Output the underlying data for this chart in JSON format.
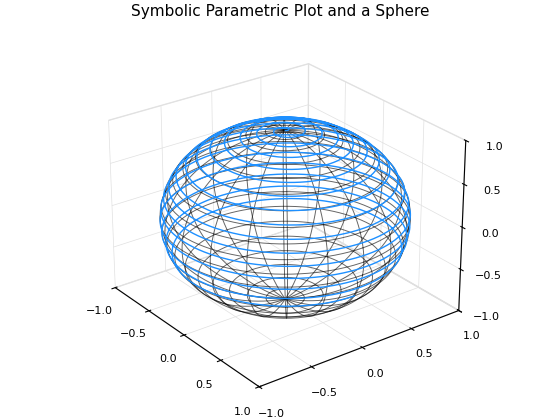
{
  "title": "Symbolic Parametric Plot and a Sphere",
  "title_fontsize": 11,
  "sphere_color": "#000000",
  "sphere_linewidth": 0.7,
  "spiral_color": "#1E90FF",
  "spiral_linewidth": 1.0,
  "xlim": [
    -1,
    1
  ],
  "ylim": [
    -1,
    1
  ],
  "zlim": [
    -1,
    1
  ],
  "xticks": [
    -1,
    -0.5,
    0,
    0.5,
    1
  ],
  "yticks": [
    -1,
    -0.5,
    0,
    0.5,
    1
  ],
  "zticks": [
    -1,
    -0.5,
    0,
    0.5,
    1
  ],
  "n_sphere_lat": 20,
  "n_sphere_lon": 20,
  "spiral_turns": 15,
  "spiral_points": 5000,
  "elev": 26,
  "azim": -37
}
